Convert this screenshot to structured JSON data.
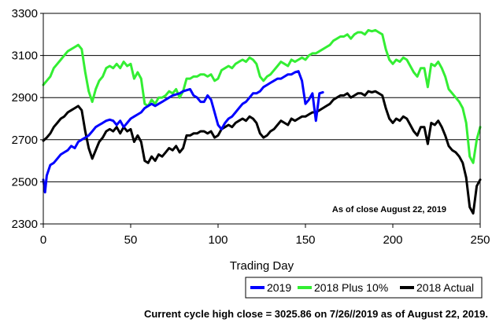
{
  "chart_data": {
    "type": "line",
    "xlabel": "Trading Day",
    "ylabel": "",
    "xlim": [
      0,
      250
    ],
    "ylim": [
      2300,
      3300
    ],
    "xticks": [
      0,
      50,
      100,
      150,
      200,
      250
    ],
    "yticks": [
      2300,
      2500,
      2700,
      2900,
      3100,
      3300
    ],
    "grid": "horizontal",
    "legend_position": "bottom-right",
    "annotation": "As of close August 22,  2019",
    "footnote": "Current cycle high close = 3025.86 on 7/26//2019 as of August 22, 2019.",
    "series": [
      {
        "name": "2019",
        "color": "#0000ff",
        "x": [
          0,
          1,
          2,
          4,
          6,
          8,
          10,
          12,
          14,
          16,
          18,
          20,
          22,
          24,
          26,
          28,
          30,
          32,
          34,
          36,
          38,
          40,
          42,
          44,
          46,
          48,
          50,
          52,
          54,
          56,
          58,
          60,
          62,
          64,
          66,
          68,
          70,
          72,
          74,
          76,
          78,
          80,
          82,
          84,
          86,
          88,
          90,
          92,
          94,
          96,
          98,
          100,
          102,
          104,
          106,
          108,
          110,
          112,
          114,
          116,
          118,
          120,
          122,
          124,
          126,
          128,
          130,
          132,
          134,
          136,
          138,
          140,
          142,
          144,
          146,
          148,
          150,
          152,
          154,
          156,
          158,
          160
        ],
        "values": [
          2510,
          2450,
          2530,
          2580,
          2590,
          2610,
          2630,
          2640,
          2650,
          2670,
          2660,
          2690,
          2700,
          2710,
          2720,
          2740,
          2760,
          2770,
          2780,
          2790,
          2795,
          2790,
          2770,
          2790,
          2760,
          2780,
          2800,
          2810,
          2820,
          2830,
          2850,
          2860,
          2870,
          2860,
          2870,
          2880,
          2890,
          2900,
          2910,
          2915,
          2920,
          2930,
          2935,
          2940,
          2910,
          2900,
          2880,
          2880,
          2910,
          2890,
          2830,
          2770,
          2750,
          2780,
          2800,
          2810,
          2830,
          2850,
          2870,
          2880,
          2900,
          2920,
          2920,
          2930,
          2950,
          2960,
          2970,
          2980,
          2990,
          2990,
          3000,
          3010,
          3010,
          3020,
          3025,
          2980,
          2870,
          2890,
          2920,
          2790,
          2920,
          2925
        ]
      },
      {
        "name": "2018 Plus 10%",
        "color": "#33ee33",
        "x": [
          0,
          2,
          4,
          6,
          8,
          10,
          12,
          14,
          16,
          18,
          20,
          22,
          24,
          26,
          28,
          30,
          32,
          34,
          36,
          38,
          40,
          42,
          44,
          46,
          48,
          50,
          52,
          54,
          56,
          58,
          60,
          62,
          64,
          66,
          68,
          70,
          72,
          74,
          76,
          78,
          80,
          82,
          84,
          86,
          88,
          90,
          92,
          94,
          96,
          98,
          100,
          102,
          104,
          106,
          108,
          110,
          112,
          114,
          116,
          118,
          120,
          122,
          124,
          126,
          128,
          130,
          132,
          134,
          136,
          138,
          140,
          142,
          144,
          146,
          148,
          150,
          152,
          154,
          156,
          158,
          160,
          162,
          164,
          166,
          168,
          170,
          172,
          174,
          176,
          178,
          180,
          182,
          184,
          186,
          188,
          190,
          192,
          194,
          196,
          198,
          200,
          202,
          204,
          206,
          208,
          210,
          212,
          214,
          216,
          218,
          220,
          222,
          224,
          226,
          228,
          230,
          232,
          234,
          236,
          238,
          240,
          242,
          244,
          246,
          248,
          250
        ],
        "values": [
          2960,
          2980,
          3000,
          3040,
          3060,
          3080,
          3100,
          3120,
          3130,
          3140,
          3150,
          3130,
          3020,
          2930,
          2880,
          2940,
          2980,
          3000,
          3040,
          3050,
          3040,
          3060,
          3040,
          3070,
          3050,
          3060,
          2990,
          3020,
          2990,
          2870,
          2860,
          2890,
          2870,
          2900,
          2900,
          2910,
          2930,
          2920,
          2940,
          2900,
          2930,
          2990,
          2990,
          3000,
          3000,
          3010,
          3010,
          3000,
          3010,
          2980,
          2990,
          3030,
          3040,
          3050,
          3040,
          3060,
          3070,
          3080,
          3070,
          3090,
          3080,
          3060,
          3000,
          2980,
          3000,
          3010,
          3030,
          3050,
          3070,
          3060,
          3050,
          3080,
          3070,
          3080,
          3090,
          3080,
          3100,
          3110,
          3110,
          3120,
          3130,
          3140,
          3150,
          3170,
          3180,
          3190,
          3190,
          3200,
          3180,
          3200,
          3210,
          3210,
          3200,
          3220,
          3215,
          3220,
          3210,
          3200,
          3130,
          3080,
          3060,
          3080,
          3070,
          3090,
          3080,
          3050,
          3020,
          3000,
          3040,
          3040,
          2950,
          3060,
          3050,
          3070,
          3040,
          3000,
          2940,
          2920,
          2900,
          2880,
          2850,
          2780,
          2620,
          2590,
          2700,
          2760
        ]
      },
      {
        "name": "2018 Actual",
        "color": "#000000",
        "x": [
          0,
          2,
          4,
          6,
          8,
          10,
          12,
          14,
          16,
          18,
          20,
          22,
          24,
          26,
          28,
          30,
          32,
          34,
          36,
          38,
          40,
          42,
          44,
          46,
          48,
          50,
          52,
          54,
          56,
          58,
          60,
          62,
          64,
          66,
          68,
          70,
          72,
          74,
          76,
          78,
          80,
          82,
          84,
          86,
          88,
          90,
          92,
          94,
          96,
          98,
          100,
          102,
          104,
          106,
          108,
          110,
          112,
          114,
          116,
          118,
          120,
          122,
          124,
          126,
          128,
          130,
          132,
          134,
          136,
          138,
          140,
          142,
          144,
          146,
          148,
          150,
          152,
          154,
          156,
          158,
          160,
          162,
          164,
          166,
          168,
          170,
          172,
          174,
          176,
          178,
          180,
          182,
          184,
          186,
          188,
          190,
          192,
          194,
          196,
          198,
          200,
          202,
          204,
          206,
          208,
          210,
          212,
          214,
          216,
          218,
          220,
          222,
          224,
          226,
          228,
          230,
          232,
          234,
          236,
          238,
          240,
          242,
          244,
          246,
          248,
          250
        ],
        "values": [
          2695,
          2710,
          2730,
          2760,
          2780,
          2800,
          2810,
          2830,
          2840,
          2850,
          2860,
          2840,
          2740,
          2660,
          2610,
          2650,
          2690,
          2710,
          2740,
          2750,
          2740,
          2760,
          2730,
          2760,
          2740,
          2750,
          2690,
          2720,
          2690,
          2600,
          2590,
          2620,
          2600,
          2630,
          2620,
          2640,
          2660,
          2650,
          2670,
          2640,
          2660,
          2720,
          2720,
          2730,
          2730,
          2740,
          2740,
          2730,
          2740,
          2710,
          2720,
          2750,
          2760,
          2770,
          2760,
          2780,
          2790,
          2800,
          2790,
          2810,
          2800,
          2780,
          2730,
          2710,
          2720,
          2740,
          2750,
          2770,
          2790,
          2780,
          2770,
          2800,
          2790,
          2800,
          2810,
          2810,
          2820,
          2830,
          2830,
          2840,
          2850,
          2860,
          2870,
          2890,
          2900,
          2910,
          2910,
          2920,
          2900,
          2910,
          2920,
          2920,
          2910,
          2930,
          2925,
          2930,
          2920,
          2910,
          2850,
          2800,
          2780,
          2800,
          2790,
          2810,
          2800,
          2770,
          2740,
          2720,
          2760,
          2760,
          2680,
          2780,
          2770,
          2790,
          2760,
          2720,
          2670,
          2650,
          2640,
          2620,
          2590,
          2520,
          2380,
          2350,
          2480,
          2510
        ]
      }
    ]
  }
}
